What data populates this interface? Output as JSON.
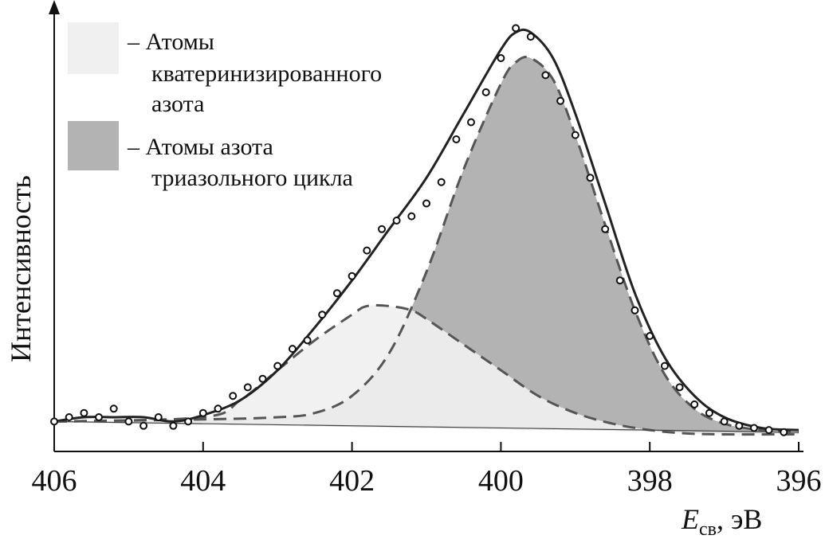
{
  "chart_data": {
    "type": "line",
    "title": "",
    "xlabel": "E",
    "xlabel_sub": "св",
    "xlabel_unit": ", эВ",
    "ylabel": "Интенсивность",
    "x_reversed": true,
    "xlim": [
      406,
      396
    ],
    "ylim": [
      0,
      100
    ],
    "x_ticks": [
      "406",
      "404",
      "402",
      "400",
      "398",
      "396"
    ],
    "grid": false,
    "legend_position": "top-left",
    "legend": [
      {
        "name": "– Атомы",
        "lines": [
          "кватеринизированного",
          "азота"
        ],
        "color": "#f0f0f0"
      },
      {
        "name": "– Атомы азота",
        "lines": [
          "триазольного цикла"
        ],
        "color": "#b3b3b3"
      }
    ],
    "series": [
      {
        "name": "– Атомы азота триазольного цикла",
        "style": "filled-dashed",
        "fill": "#b3b3b3",
        "x": [
          406.0,
          404.0,
          403.0,
          402.5,
          402.0,
          401.5,
          401.0,
          400.5,
          400.0,
          399.8,
          399.6,
          399.3,
          399.0,
          398.6,
          398.2,
          397.8,
          397.4,
          397.0,
          396.5,
          396.0
        ],
        "y": [
          7,
          7.5,
          8,
          9,
          13,
          23,
          42,
          66,
          86,
          91,
          92,
          87,
          74,
          53,
          33,
          18,
          10,
          6.5,
          5,
          4.5
        ]
      },
      {
        "name": "– Атомы кватеринизированного азота",
        "style": "filled-dashed",
        "fill": "#f0f0f0",
        "x": [
          406.0,
          404.0,
          403.5,
          403.0,
          402.5,
          402.0,
          401.8,
          401.5,
          401.2,
          401.0,
          400.5,
          400.0,
          399.5,
          399.0,
          398.5,
          398.0,
          397.5,
          397.0,
          396.0
        ],
        "y": [
          7,
          8,
          12,
          19,
          26,
          32,
          34,
          34,
          33,
          31,
          25,
          19,
          13,
          9,
          6.5,
          5,
          4.2,
          4,
          4
        ]
      },
      {
        "name": "fit",
        "style": "solid",
        "x": [
          406.0,
          405.6,
          405.2,
          404.8,
          404.4,
          404.0,
          403.5,
          403.0,
          402.5,
          402.0,
          401.5,
          401.0,
          400.5,
          400.0,
          399.8,
          399.6,
          399.3,
          399.0,
          398.6,
          398.2,
          397.8,
          397.4,
          397.0,
          396.5,
          396.0
        ],
        "y": [
          7,
          8,
          8,
          8,
          7,
          8.5,
          12,
          19,
          29,
          40,
          52,
          64,
          79,
          94,
          98,
          98,
          92,
          79,
          58,
          37,
          22,
          13,
          8,
          5.5,
          5
        ]
      },
      {
        "name": "experiment",
        "style": "markers",
        "x": [
          406.0,
          405.8,
          405.6,
          405.4,
          405.2,
          405.0,
          404.8,
          404.6,
          404.4,
          404.2,
          404.0,
          403.8,
          403.6,
          403.4,
          403.2,
          403.0,
          402.8,
          402.6,
          402.4,
          402.2,
          402.0,
          401.8,
          401.6,
          401.4,
          401.2,
          401.0,
          400.8,
          400.6,
          400.4,
          400.2,
          400.0,
          399.8,
          399.6,
          399.4,
          399.2,
          399.0,
          398.8,
          398.6,
          398.4,
          398.2,
          398.0,
          397.8,
          397.6,
          397.4,
          397.2,
          397.0,
          396.8,
          396.6,
          396.4,
          396.2
        ],
        "y": [
          7,
          8,
          9,
          8,
          10,
          7,
          6,
          8,
          6,
          7,
          9,
          10,
          13,
          15,
          17,
          20,
          24,
          26,
          32,
          37,
          41,
          47,
          52,
          54,
          55,
          58,
          63,
          73,
          77,
          84,
          92,
          99,
          97,
          88,
          82,
          74,
          64,
          52,
          40,
          33,
          27,
          20,
          15,
          11,
          9,
          7,
          6,
          5.5,
          5,
          4.5
        ]
      }
    ]
  }
}
